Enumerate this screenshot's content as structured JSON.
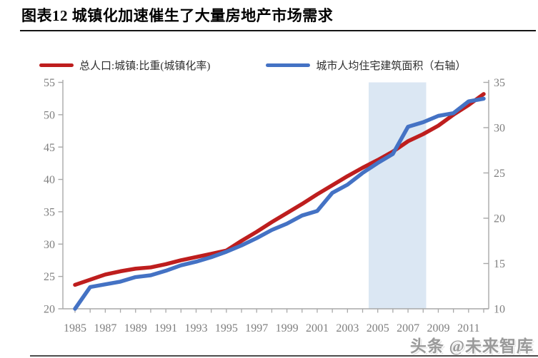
{
  "page": {
    "watermark": "头条 @未来智库"
  },
  "chart_data": {
    "type": "line",
    "title": "图表12 城镇化加速催生了大量房地产市场需求",
    "x": [
      1985,
      1986,
      1987,
      1988,
      1989,
      1990,
      1991,
      1992,
      1993,
      1994,
      1995,
      1996,
      1997,
      1998,
      1999,
      2000,
      2001,
      2002,
      2003,
      2004,
      2005,
      2006,
      2007,
      2008,
      2009,
      2010,
      2011,
      2012
    ],
    "x_tick_labels": [
      "1985",
      "1987",
      "1989",
      "1991",
      "1993",
      "1995",
      "1997",
      "1999",
      "2001",
      "2003",
      "2005",
      "2007",
      "2009",
      "2011"
    ],
    "series": [
      {
        "name": "总人口:城镇:比重(城镇化率)",
        "axis": "left",
        "color": "#BE1E1E",
        "values": [
          23.7,
          24.5,
          25.3,
          25.8,
          26.2,
          26.4,
          26.9,
          27.5,
          28.0,
          28.5,
          29.0,
          30.5,
          31.9,
          33.4,
          34.8,
          36.2,
          37.7,
          39.1,
          40.5,
          41.8,
          43.0,
          44.3,
          45.9,
          47.0,
          48.3,
          50.0,
          51.5,
          53.2
        ]
      },
      {
        "name": "城市人均住宅建筑面积（右轴）",
        "axis": "right",
        "color": "#4472C4",
        "values": [
          10.0,
          12.4,
          12.7,
          13.0,
          13.5,
          13.7,
          14.2,
          14.8,
          15.2,
          15.7,
          16.3,
          17.0,
          17.8,
          18.7,
          19.4,
          20.3,
          20.8,
          22.8,
          23.7,
          25.0,
          26.1,
          27.1,
          30.1,
          30.6,
          31.3,
          31.6,
          32.9,
          33.2
        ]
      }
    ],
    "left_axis": {
      "min": 20,
      "max": 55,
      "ticks": [
        20,
        25,
        30,
        35,
        40,
        45,
        50,
        55
      ]
    },
    "right_axis": {
      "min": 10,
      "max": 35,
      "ticks": [
        10,
        15,
        20,
        25,
        30,
        35
      ]
    },
    "highlight_band": {
      "x_start": 2004.4,
      "x_end": 2008.2,
      "color": "#DBE7F3"
    },
    "grid": false,
    "legend_position": "top"
  }
}
